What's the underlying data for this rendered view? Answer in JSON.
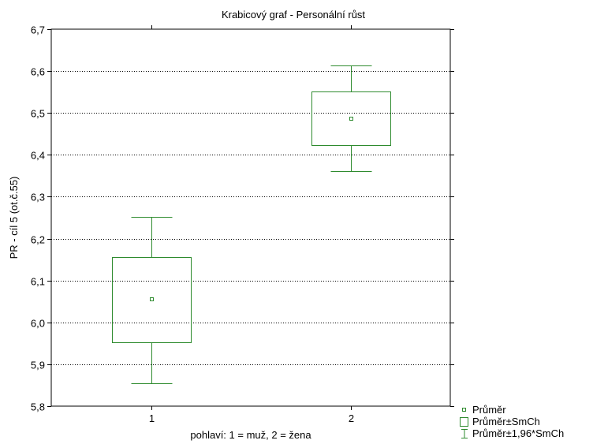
{
  "chart_data": {
    "type": "box",
    "title": "Krabicový graf - Personální růst",
    "xlabel": "pohlaví: 1 = muž, 2 = žena",
    "ylabel": "PR - cíl 5 (ot.č.55)",
    "ylim": [
      5.8,
      6.7
    ],
    "yticks": [
      "6,7",
      "6,6",
      "6,5",
      "6,4",
      "6,3",
      "6,2",
      "6,1",
      "6,0",
      "5,9",
      "5,8"
    ],
    "categories": [
      "1",
      "2"
    ],
    "boxes": [
      {
        "category": "1",
        "mean": 6.054,
        "se_low": 5.953,
        "se_high": 6.155,
        "ci_low": 5.855,
        "ci_high": 6.252
      },
      {
        "category": "2",
        "mean": 6.486,
        "se_low": 6.423,
        "se_high": 6.552,
        "ci_low": 6.361,
        "ci_high": 6.614
      }
    ],
    "color": "#2e8b2e",
    "grid": "horizontal dotted",
    "legend_position": "bottom-right",
    "legend": [
      "Průměr",
      "Průměr±SmCh",
      "Průměr±1,96*SmCh"
    ]
  }
}
